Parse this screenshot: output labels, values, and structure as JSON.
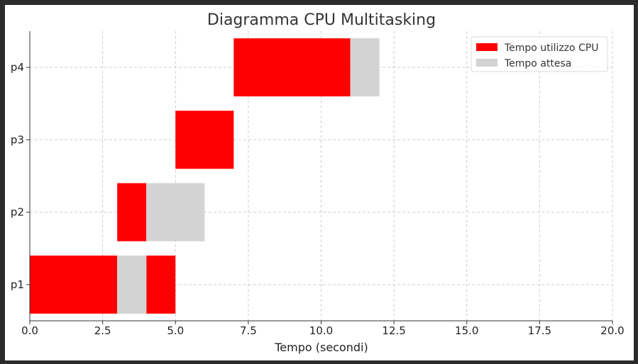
{
  "chart_data": {
    "type": "bar",
    "orientation": "horizontal",
    "title": "Diagramma CPU Multitasking",
    "xlabel": "Tempo (secondi)",
    "ylabel": "",
    "xlim": [
      0,
      20
    ],
    "xticks": [
      "0.0",
      "2.5",
      "5.0",
      "7.5",
      "10.0",
      "12.5",
      "15.0",
      "17.5",
      "20.0"
    ],
    "categories": [
      "p1",
      "p2",
      "p3",
      "p4"
    ],
    "grid": true,
    "legend_position": "top-right",
    "series": [
      {
        "name": "Tempo utilizzo CPU",
        "color": "#ff0000",
        "segments": [
          {
            "category": "p1",
            "start": 0,
            "end": 3
          },
          {
            "category": "p1",
            "start": 4,
            "end": 5
          },
          {
            "category": "p2",
            "start": 3,
            "end": 4
          },
          {
            "category": "p3",
            "start": 5,
            "end": 7
          },
          {
            "category": "p4",
            "start": 7,
            "end": 11
          }
        ]
      },
      {
        "name": "Tempo attesa",
        "color": "#d3d3d3",
        "segments": [
          {
            "category": "p1",
            "start": 3,
            "end": 4
          },
          {
            "category": "p2",
            "start": 4,
            "end": 6
          },
          {
            "category": "p4",
            "start": 11,
            "end": 12
          }
        ]
      }
    ]
  }
}
